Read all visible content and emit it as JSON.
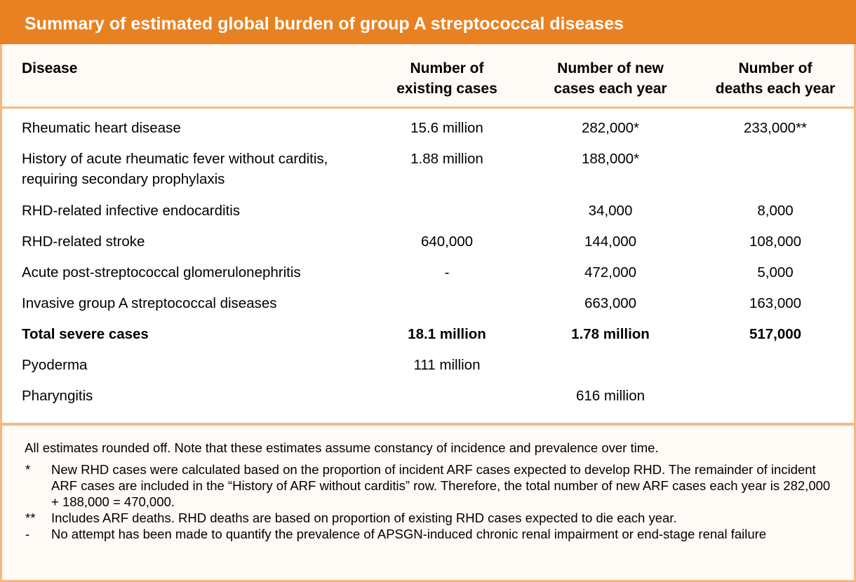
{
  "title": "Summary of estimated global burden of group A streptococcal diseases",
  "columns": [
    "Disease",
    "Number of existing cases",
    "Number of new cases each year",
    "Number of deaths each year"
  ],
  "column_lines": [
    [
      "Disease"
    ],
    [
      "Number of",
      "existing cases"
    ],
    [
      "Number of new",
      "cases each year"
    ],
    [
      "Number of",
      "deaths each year"
    ]
  ],
  "rows": [
    {
      "disease": "Rheumatic heart disease",
      "existing": "15.6 million",
      "new": "282,000*",
      "deaths": "233,000**"
    },
    {
      "disease": "History of acute rheumatic fever without carditis, requiring secondary prophylaxis",
      "existing": "1.88 million",
      "new": "188,000*",
      "deaths": ""
    },
    {
      "disease": "RHD-related infective endocarditis",
      "existing": "",
      "new": "34,000",
      "deaths": "8,000"
    },
    {
      "disease": "RHD-related stroke",
      "existing": "640,000",
      "new": "144,000",
      "deaths": "108,000"
    },
    {
      "disease": "Acute post-streptococcal glomerulonephritis",
      "existing": "-",
      "new": "472,000",
      "deaths": "5,000"
    },
    {
      "disease": "Invasive group A streptococcal diseases",
      "existing": "",
      "new": "663,000",
      "deaths": "163,000"
    },
    {
      "disease": "Total severe cases",
      "existing": "18.1 million",
      "new": "1.78 million",
      "deaths": "517,000",
      "bold": true
    },
    {
      "disease": "Pyoderma",
      "existing": "111 million",
      "new": "",
      "deaths": ""
    },
    {
      "disease": "Pharyngitis",
      "existing": "",
      "new": "616 million",
      "deaths": ""
    }
  ],
  "footnotes": {
    "intro": "All estimates rounded off.  Note that these estimates assume constancy of incidence and prevalence over time.",
    "items": [
      {
        "mark": "*",
        "text": "New RHD cases were calculated based on the proportion of incident ARF cases expected to develop RHD. The remainder of incident ARF cases are included in the “History of ARF without carditis” row. Therefore, the total number of new ARF cases each year is 282,000 + 188,000 = 470,000."
      },
      {
        "mark": "**",
        "text": "Includes ARF deaths. RHD deaths are based on proportion of existing RHD cases expected to die each year."
      },
      {
        "mark": "-",
        "text": "No attempt has been made to quantify the prevalence of APSGN-induced chronic renal impairment or end-stage renal failure"
      }
    ]
  },
  "colors": {
    "header": "#e88121",
    "border": "#f5b880",
    "panel": "#fffaf5"
  }
}
